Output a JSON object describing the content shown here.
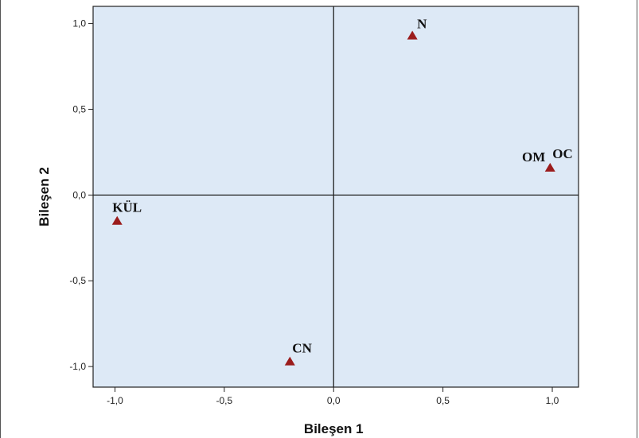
{
  "chart_data": {
    "type": "scatter",
    "xlabel": "Bileşen 1",
    "ylabel": "Bileşen 2",
    "xlim": [
      -1.1,
      1.12
    ],
    "ylim": [
      -1.12,
      1.1
    ],
    "x_ticks": [
      -1.0,
      -0.5,
      0.0,
      0.5,
      1.0
    ],
    "y_ticks": [
      -1.0,
      -0.5,
      0.0,
      0.5,
      1.0
    ],
    "x_tick_labels": [
      "-1,0",
      "-0,5",
      "0,0",
      "0,5",
      "1,0"
    ],
    "y_tick_labels": [
      "-1,0",
      "-0,5",
      "0,0",
      "0,5",
      "1,0"
    ],
    "reference_lines": {
      "x": 0,
      "y": 0
    },
    "grid": false,
    "background_color": "#dde9f6",
    "marker_color": "#9b1c1c",
    "marker_shape": "triangle",
    "points": [
      {
        "label": "N",
        "x": 0.36,
        "y": 0.93
      },
      {
        "label": "OM",
        "x": 0.99,
        "y": 0.16
      },
      {
        "label": "OC",
        "x": 0.99,
        "y": 0.16
      },
      {
        "label": "KÜL",
        "x": -0.99,
        "y": -0.15
      },
      {
        "label": "CN",
        "x": -0.2,
        "y": -0.97
      }
    ]
  }
}
